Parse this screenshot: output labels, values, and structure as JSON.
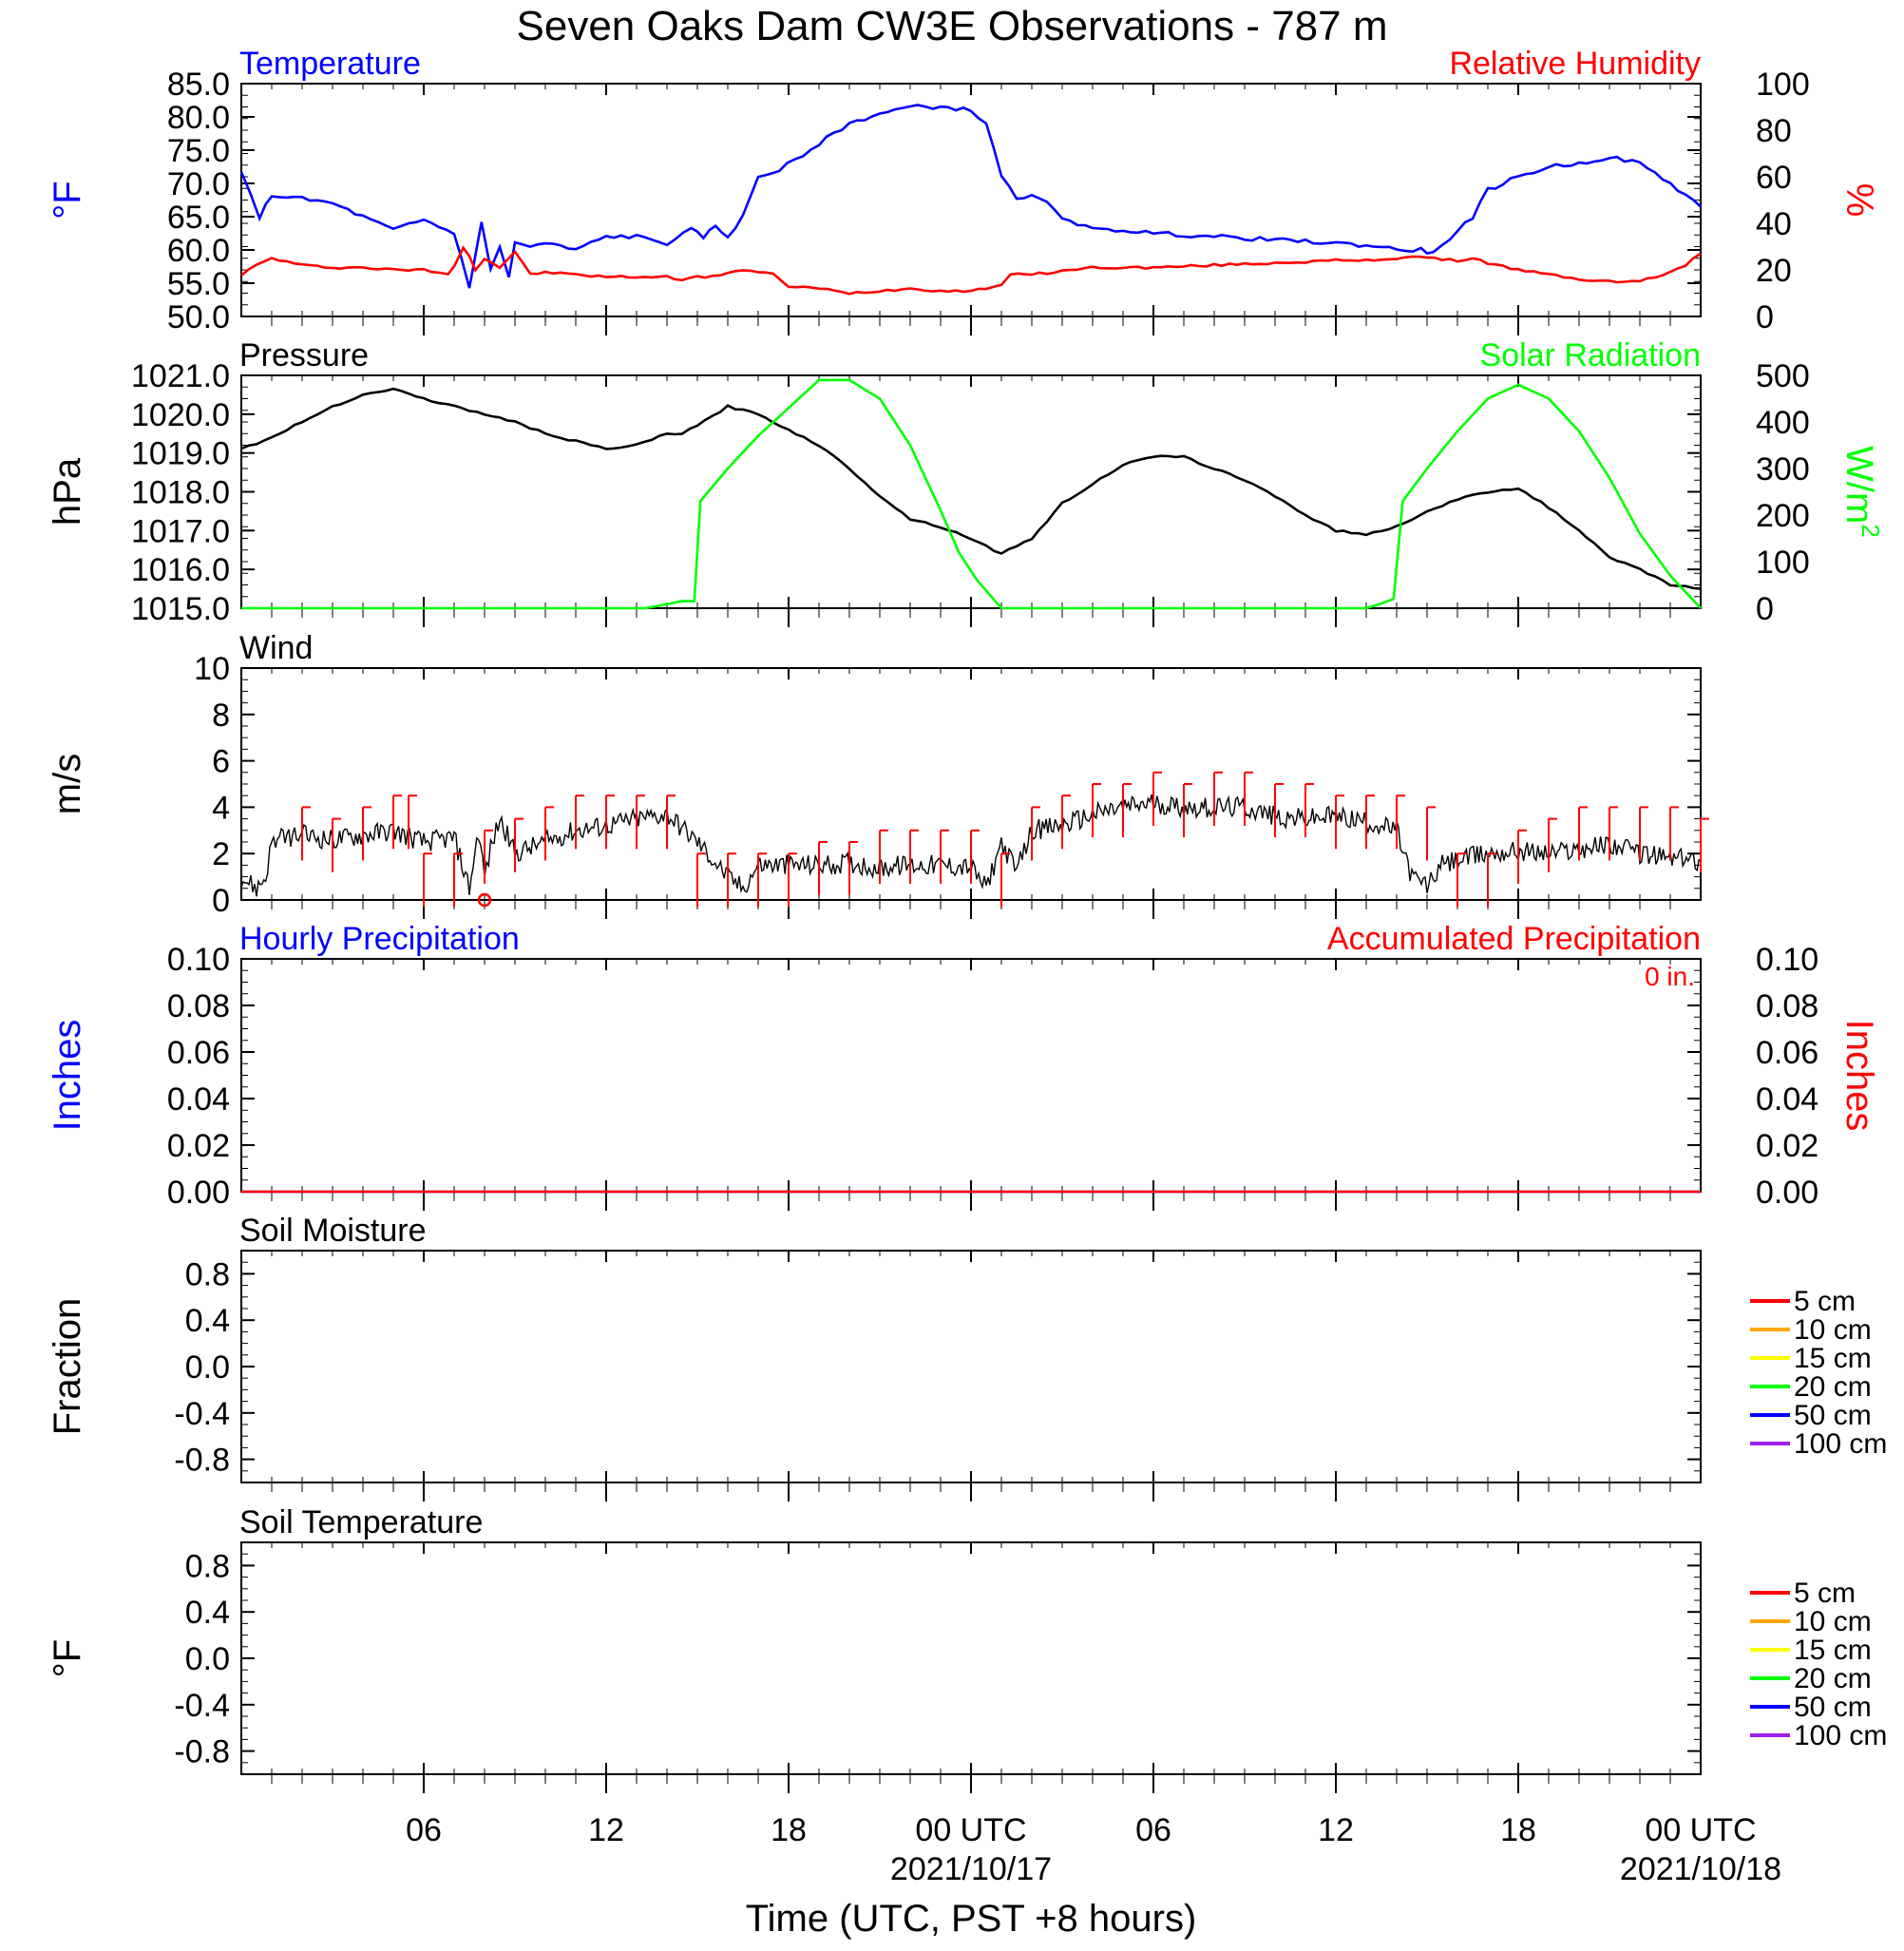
{
  "title": "Seven Oaks Dam CW3E Observations - 787 m",
  "x_axis": {
    "label": "Time (UTC, PST +8 hours)",
    "ticks": [
      {
        "hour": 6,
        "label": "06",
        "date": ""
      },
      {
        "hour": 12,
        "label": "12",
        "date": ""
      },
      {
        "hour": 18,
        "label": "18",
        "date": ""
      },
      {
        "hour": 24,
        "label": "00 UTC",
        "date": "2021/10/17"
      },
      {
        "hour": 30,
        "label": "06",
        "date": ""
      },
      {
        "hour": 36,
        "label": "12",
        "date": ""
      },
      {
        "hour": 42,
        "label": "18",
        "date": ""
      },
      {
        "hour": 48,
        "label": "00 UTC",
        "date": "2021/10/18"
      }
    ]
  },
  "colors": {
    "temperature": "#0000ff",
    "humidity": "#ff0000",
    "pressure": "#000000",
    "solar": "#00ff00",
    "wind": "#000000",
    "barb": "#ff0000",
    "hourly_precip": "#0000ff",
    "accum_precip": "#ff0000"
  },
  "chart_data": [
    {
      "id": "temp_rh",
      "type": "line",
      "title_left": "Temperature",
      "title_right": "Relative Humidity",
      "ylabel_left": "°F",
      "ylabel_right": "%",
      "ylim_left": [
        50,
        85
      ],
      "ylim_right": [
        0,
        100
      ],
      "yticks_left": [
        "50.0",
        "55.0",
        "60.0",
        "65.0",
        "70.0",
        "75.0",
        "80.0",
        "85.0"
      ],
      "yticks_right": [
        "0",
        "20",
        "40",
        "60",
        "80",
        "100"
      ],
      "series": [
        {
          "name": "Temperature",
          "axis": "left",
          "x": [
            0,
            0.6,
            1.0,
            1.5,
            3,
            5,
            6,
            7,
            7.5,
            7.9,
            8.2,
            8.5,
            8.8,
            9.0,
            9.5,
            10,
            11,
            12,
            13,
            14,
            14.8,
            15.2,
            15.6,
            16,
            16.5,
            17,
            17.7,
            19,
            20,
            21,
            22,
            23,
            24,
            24.5,
            25,
            25.5,
            26,
            26.5,
            27,
            28,
            29,
            30,
            32,
            34,
            36,
            37.5,
            38,
            38.8,
            39.2,
            39.5,
            40,
            40.5,
            41,
            42,
            43,
            44,
            45,
            46,
            47,
            48
          ],
          "y": [
            71.5,
            65,
            68.2,
            68,
            67,
            63,
            64.5,
            62.5,
            54.5,
            64,
            57,
            60.5,
            56,
            61,
            60.5,
            61,
            60,
            62,
            62,
            61,
            63,
            62,
            63.5,
            62,
            65,
            71,
            72,
            76,
            79,
            80.5,
            81.5,
            81.5,
            81,
            79,
            71,
            68,
            68,
            67,
            65,
            63,
            63,
            62.5,
            62,
            61.5,
            61,
            60.5,
            60,
            60,
            59.5,
            60.5,
            63,
            65,
            69,
            71,
            72.5,
            73,
            74,
            73,
            70,
            66.5
          ]
        },
        {
          "name": "Relative Humidity",
          "axis": "right",
          "x": [
            0,
            0.5,
            1,
            2,
            3,
            4,
            5,
            6,
            6.5,
            6.8,
            7,
            7.3,
            7.5,
            7.7,
            8,
            8.5,
            9,
            9.5,
            10,
            12,
            14,
            14.5,
            15,
            15.5,
            16,
            16.5,
            17,
            17.5,
            18,
            19,
            20,
            22,
            23,
            24,
            24.5,
            25,
            25.3,
            26,
            28,
            30,
            32,
            34,
            36,
            37,
            38,
            38.5,
            39,
            40,
            40.5,
            41,
            42,
            43,
            44,
            45,
            46,
            46.5,
            47,
            47.5,
            48
          ],
          "y": [
            18,
            22,
            25,
            22,
            21,
            21,
            20,
            20,
            19,
            18,
            22,
            30,
            26,
            20,
            25,
            21,
            28,
            18,
            19,
            17,
            17,
            16,
            17,
            17,
            19,
            20,
            19,
            18,
            13,
            12,
            10,
            12,
            11,
            11,
            12,
            14,
            18,
            18,
            21,
            21,
            22,
            23,
            24,
            24,
            25,
            26,
            25,
            24,
            25,
            23,
            20,
            18,
            16,
            15,
            15,
            17,
            19,
            22,
            27
          ]
        }
      ]
    },
    {
      "id": "pressure_solar",
      "type": "line",
      "title_left": "Pressure",
      "title_right": "Solar Radiation",
      "ylabel_left": "hPa",
      "ylabel_right": "W/m",
      "ylabel_right_sup": "2",
      "ylim_left": [
        1015,
        1021
      ],
      "ylim_right": [
        0,
        500
      ],
      "yticks_left": [
        "1015.0",
        "1016.0",
        "1017.0",
        "1018.0",
        "1019.0",
        "1020.0",
        "1021.0"
      ],
      "yticks_right": [
        "0",
        "100",
        "200",
        "300",
        "400",
        "500"
      ],
      "series": [
        {
          "name": "Pressure",
          "axis": "left",
          "x": [
            0,
            1,
            2,
            3,
            4,
            5,
            6,
            7,
            8,
            9,
            10,
            11,
            12,
            13,
            14,
            14.5,
            15,
            16,
            17,
            18,
            19,
            20,
            21,
            22,
            23,
            24,
            25,
            26,
            27,
            28,
            29,
            30,
            31,
            32,
            33,
            34,
            35,
            36,
            37,
            38,
            39,
            40,
            41,
            42,
            43,
            44,
            45,
            46,
            47,
            48
          ],
          "y": [
            1019.1,
            1019.4,
            1019.8,
            1020.2,
            1020.5,
            1020.65,
            1020.4,
            1020.2,
            1020.0,
            1019.8,
            1019.5,
            1019.3,
            1019.1,
            1019.2,
            1019.5,
            1019.5,
            1019.7,
            1020.2,
            1020.0,
            1019.6,
            1019.2,
            1018.6,
            1017.9,
            1017.3,
            1017.1,
            1016.8,
            1016.4,
            1016.8,
            1017.7,
            1018.2,
            1018.7,
            1018.9,
            1018.9,
            1018.6,
            1018.3,
            1017.9,
            1017.4,
            1017.0,
            1016.9,
            1017.1,
            1017.5,
            1017.8,
            1018.0,
            1018.1,
            1017.6,
            1017.0,
            1016.3,
            1016.0,
            1015.6,
            1015.5
          ]
        },
        {
          "name": "Solar Radiation",
          "axis": "right",
          "x": [
            0,
            13.3,
            14.5,
            14.9,
            15.1,
            16,
            17,
            18,
            19,
            20,
            21,
            22,
            23,
            23.6,
            24.2,
            25,
            28,
            34.8,
            37,
            37.5,
            37.9,
            38.2,
            39,
            40,
            41,
            42,
            43,
            44,
            45,
            46,
            47,
            48
          ],
          "y": [
            0,
            0,
            15,
            15,
            230,
            300,
            370,
            430,
            490,
            490,
            450,
            350,
            210,
            120,
            60,
            0,
            0,
            0,
            0,
            10,
            20,
            230,
            300,
            380,
            450,
            480,
            450,
            380,
            280,
            160,
            70,
            0
          ]
        }
      ]
    },
    {
      "id": "wind",
      "type": "line",
      "title_left": "Wind",
      "ylabel_left": "m/s",
      "ylim_left": [
        0,
        10
      ],
      "yticks_left": [
        "0",
        "2",
        "4",
        "6",
        "8",
        "10"
      ],
      "series": [
        {
          "name": "Wind",
          "axis": "left",
          "x": [
            0,
            0.5,
            0.8,
            1.0,
            1.5,
            2,
            3,
            4,
            5,
            6,
            7,
            7.5,
            7.8,
            8,
            8.2,
            8.5,
            9,
            10,
            11,
            12,
            13,
            14,
            15,
            16,
            16.5,
            17,
            18,
            19,
            20,
            21,
            22,
            23,
            24,
            24.5,
            25,
            25.5,
            26,
            27,
            28,
            29,
            30,
            31,
            32,
            33,
            34,
            35,
            36,
            37,
            38,
            38.5,
            39,
            39.5,
            40,
            41,
            42,
            43,
            44,
            45,
            46,
            47,
            48
          ],
          "y": [
            1,
            0.5,
            1,
            2.5,
            2.7,
            2.8,
            2.6,
            2.8,
            3,
            2.5,
            2.7,
            0.5,
            3,
            1,
            2.2,
            3.5,
            2,
            2.5,
            3,
            3.2,
            3.5,
            3.7,
            2.5,
            1,
            0.5,
            1.5,
            1.5,
            1.5,
            1.6,
            1.4,
            1.5,
            1.5,
            1.4,
            0.5,
            2.5,
            1.2,
            3,
            3.2,
            3.7,
            4,
            4.2,
            4,
            4,
            4,
            3.6,
            3.5,
            3.6,
            3.4,
            3,
            1,
            0.6,
            1.5,
            1.7,
            2,
            2.1,
            2,
            2.2,
            2.4,
            2,
            1.8,
            1.7
          ]
        }
      ],
      "barbs": {
        "x": [
          2,
          3,
          4,
          5,
          5.5,
          6,
          7,
          8,
          9,
          10,
          11,
          12,
          13,
          14,
          15,
          16,
          17,
          18,
          19,
          20,
          21,
          22,
          23,
          24,
          25,
          26,
          27,
          28,
          29,
          30,
          31,
          32,
          33,
          34,
          35,
          36,
          37,
          38,
          39,
          40,
          41,
          42,
          43,
          44,
          45,
          46,
          47,
          48
        ],
        "speed": [
          4,
          3.5,
          4,
          4.5,
          4.5,
          2,
          2,
          3,
          3.5,
          4,
          4.5,
          4.5,
          4.5,
          4.5,
          2,
          2,
          2,
          2,
          2.5,
          2.5,
          3,
          3,
          3,
          3,
          2,
          4,
          4.5,
          5,
          5,
          5.5,
          5,
          5.5,
          5.5,
          5,
          5,
          4.5,
          4.5,
          4.5,
          4,
          2,
          2,
          3,
          3.5,
          4,
          4,
          4,
          4,
          3.5
        ]
      },
      "calm_marker": {
        "x": 8,
        "y": 0
      }
    },
    {
      "id": "precip",
      "type": "line",
      "title_left": "Hourly Precipitation",
      "title_right": "Accumulated Precipitation",
      "total_label": "0 in.",
      "ylabel_left": "Inches",
      "ylabel_right": "Inches",
      "ylim_left": [
        0,
        0.1
      ],
      "ylim_right": [
        0,
        0.1
      ],
      "yticks_left": [
        "0.00",
        "0.02",
        "0.04",
        "0.06",
        "0.08",
        "0.10"
      ],
      "yticks_right": [
        "0.00",
        "0.02",
        "0.04",
        "0.06",
        "0.08",
        "0.10"
      ],
      "series": [
        {
          "name": "Hourly Precipitation",
          "axis": "left",
          "x": [
            0,
            48
          ],
          "y": [
            0,
            0
          ]
        },
        {
          "name": "Accumulated Precipitation",
          "axis": "right",
          "x": [
            0,
            48
          ],
          "y": [
            0,
            0
          ]
        }
      ]
    },
    {
      "id": "soil_moisture",
      "type": "line",
      "title_left": "Soil Moisture",
      "ylabel_left": "Fraction",
      "ylim_left": [
        -1,
        1
      ],
      "yticks_left": [
        "-0.8",
        "-0.4",
        "0.0",
        "0.4",
        "0.8"
      ],
      "legend": [
        {
          "label": "5 cm",
          "color": "#ff0000"
        },
        {
          "label": "10 cm",
          "color": "#ffa500"
        },
        {
          "label": "15 cm",
          "color": "#ffff00"
        },
        {
          "label": "20 cm",
          "color": "#00ff00"
        },
        {
          "label": "50 cm",
          "color": "#0000ff"
        },
        {
          "label": "100 cm",
          "color": "#a020f0"
        }
      ]
    },
    {
      "id": "soil_temp",
      "type": "line",
      "title_left": "Soil Temperature",
      "ylabel_left": "°F",
      "ylim_left": [
        -1,
        1
      ],
      "yticks_left": [
        "-0.8",
        "-0.4",
        "0.0",
        "0.4",
        "0.8"
      ],
      "legend": [
        {
          "label": "5 cm",
          "color": "#ff0000"
        },
        {
          "label": "10 cm",
          "color": "#ffa500"
        },
        {
          "label": "15 cm",
          "color": "#ffff00"
        },
        {
          "label": "20 cm",
          "color": "#00ff00"
        },
        {
          "label": "50 cm",
          "color": "#0000ff"
        },
        {
          "label": "100 cm",
          "color": "#a020f0"
        }
      ]
    }
  ]
}
